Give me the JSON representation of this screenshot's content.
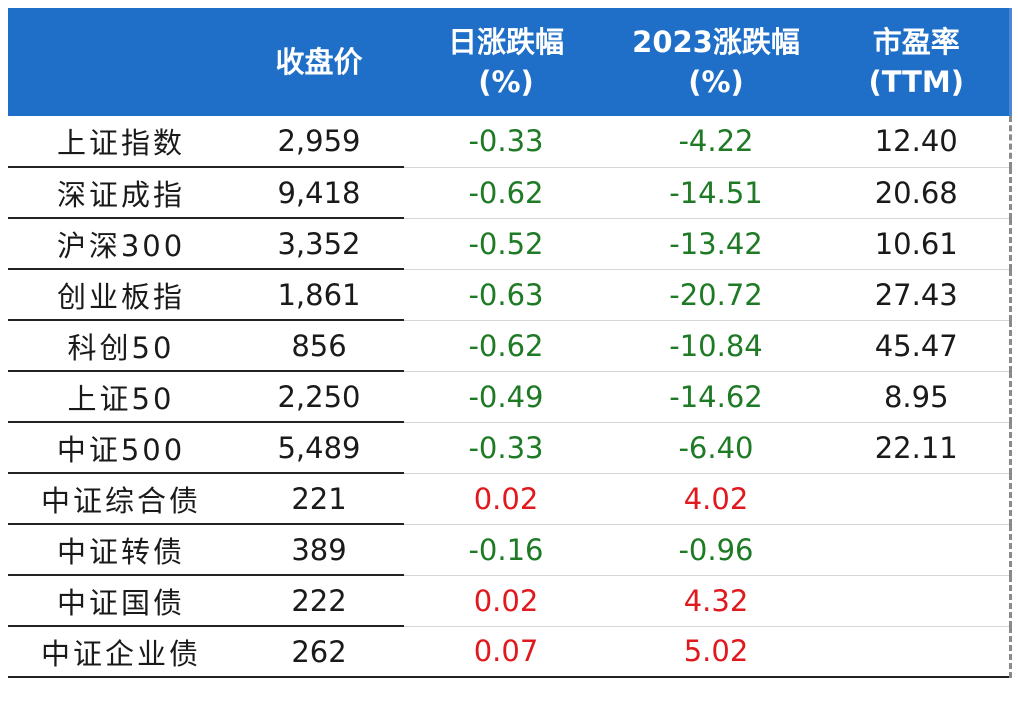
{
  "colors": {
    "header_bg": "#1f6fc8",
    "header_text": "#ffffff",
    "negative": "#1e7a24",
    "positive": "#e0191e"
  },
  "header": {
    "col0": "",
    "col1": "收盘价",
    "col2_line1": "日涨跌幅",
    "col2_line2": "(%)",
    "col3_line1": "2023涨跌幅",
    "col3_line2": "(%)",
    "col4_line1": "市盈率",
    "col4_line2": "(TTM)"
  },
  "rows": [
    {
      "name": "上证指数",
      "close": "2,959",
      "daily": "-0.33",
      "ytd": "-4.22",
      "pe": "12.40"
    },
    {
      "name": "深证成指",
      "close": "9,418",
      "daily": "-0.62",
      "ytd": "-14.51",
      "pe": "20.68"
    },
    {
      "name": "沪深300",
      "close": "3,352",
      "daily": "-0.52",
      "ytd": "-13.42",
      "pe": "10.61"
    },
    {
      "name": "创业板指",
      "close": "1,861",
      "daily": "-0.63",
      "ytd": "-20.72",
      "pe": "27.43"
    },
    {
      "name": "科创50",
      "close": "856",
      "daily": "-0.62",
      "ytd": "-10.84",
      "pe": "45.47"
    },
    {
      "name": "上证50",
      "close": "2,250",
      "daily": "-0.49",
      "ytd": "-14.62",
      "pe": "8.95"
    },
    {
      "name": "中证500",
      "close": "5,489",
      "daily": "-0.33",
      "ytd": "-6.40",
      "pe": "22.11"
    },
    {
      "name": "中证综合债",
      "close": "221",
      "daily": "0.02",
      "ytd": "4.02",
      "pe": ""
    },
    {
      "name": "中证转债",
      "close": "389",
      "daily": "-0.16",
      "ytd": "-0.96",
      "pe": ""
    },
    {
      "name": "中证国债",
      "close": "222",
      "daily": "0.02",
      "ytd": "4.32",
      "pe": ""
    },
    {
      "name": "中证企业债",
      "close": "262",
      "daily": "0.07",
      "ytd": "5.02",
      "pe": ""
    }
  ]
}
